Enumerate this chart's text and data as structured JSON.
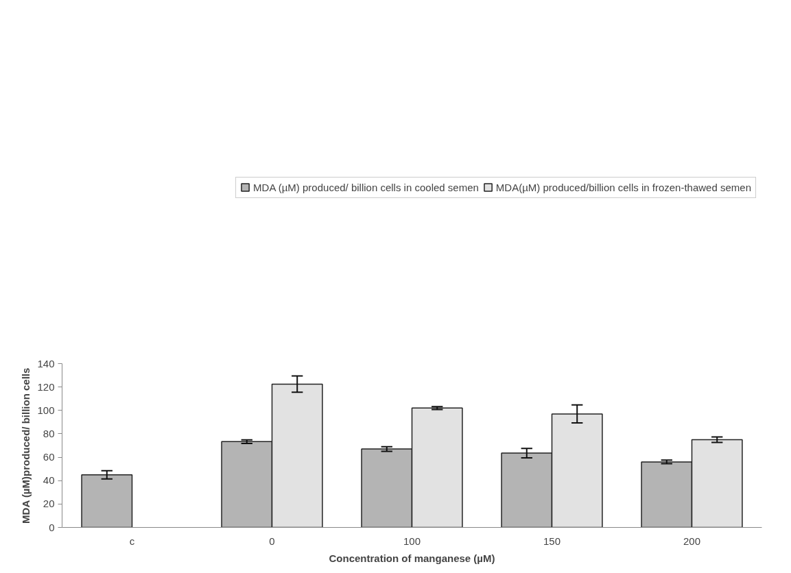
{
  "chart_data": {
    "type": "bar",
    "xlabel": "Concentration of manganese (µM)",
    "ylabel": "MDA (µM)produced/ billion cells",
    "categories": [
      "c",
      "0",
      "100",
      "150",
      "200"
    ],
    "series": [
      {
        "name": "MDA (µM) produced/ billion cells in cooled semen",
        "color": "#b4b4b4",
        "values": [
          45,
          73.3,
          67,
          63.5,
          56
        ],
        "errors": [
          3.5,
          1.5,
          2,
          4,
          1.5
        ]
      },
      {
        "name": "MDA(µM) produced/billion cells in frozen-thawed semen",
        "color": "#e2e2e2",
        "values": [
          null,
          122.5,
          102,
          97,
          75
        ],
        "errors": [
          null,
          7,
          1.3,
          7.7,
          2.3
        ]
      }
    ],
    "ylim": [
      0,
      140
    ],
    "yticks": [
      0,
      20,
      40,
      60,
      80,
      100,
      120,
      140
    ],
    "grid": false,
    "legend": "top"
  }
}
